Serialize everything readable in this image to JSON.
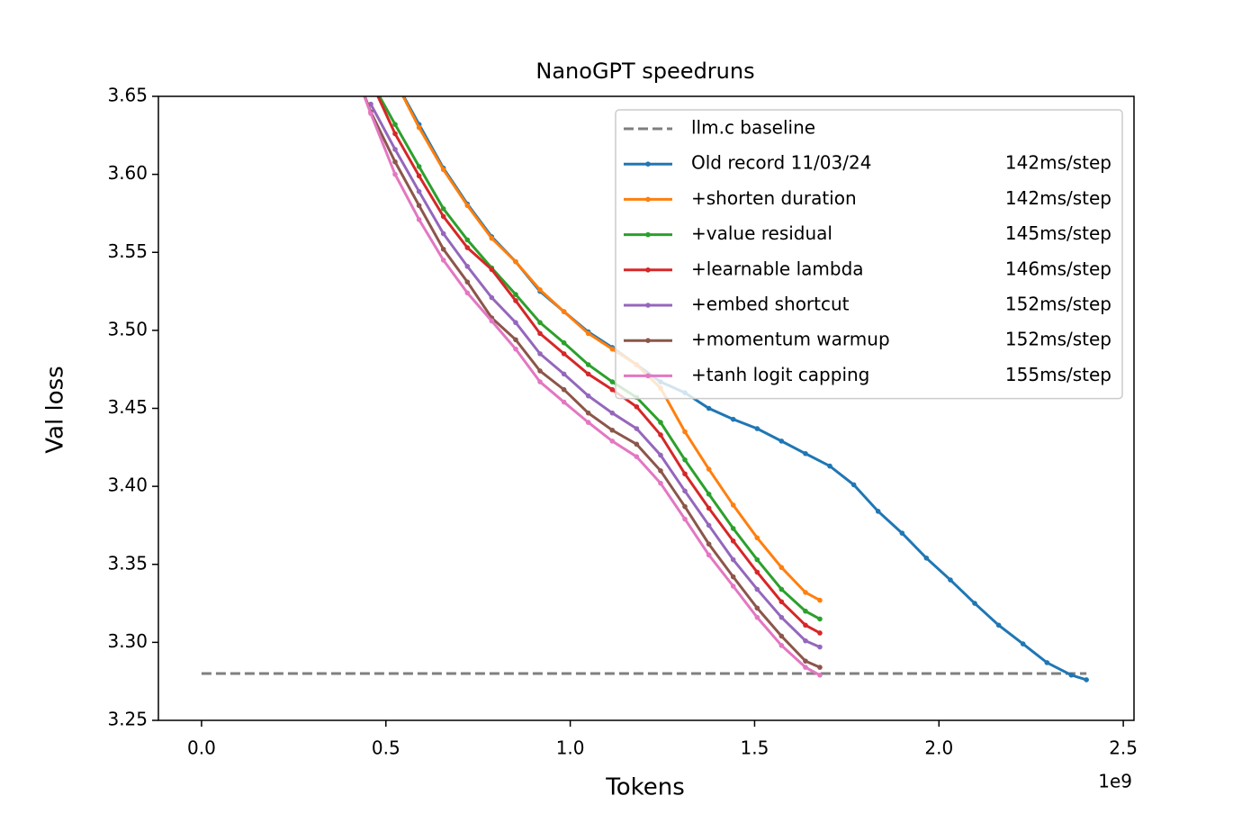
{
  "chart_data": {
    "type": "line",
    "title": "NanoGPT speedruns",
    "x_label": "Tokens",
    "y_label": "Val loss",
    "x_offset_label": "1e9",
    "xlim": [
      -0.117,
      2.529
    ],
    "ylim": [
      3.25,
      3.65
    ],
    "xticks": [
      {
        "value": 0,
        "label": "0.0"
      },
      0.5,
      {
        "value": 1,
        "label": "1.0"
      },
      1.5,
      {
        "value": 2,
        "label": "2.0"
      },
      2.5
    ],
    "yticks": [
      3.25,
      {
        "value": 3.3,
        "label": "3.30"
      },
      3.35,
      {
        "value": 3.4,
        "label": "3.40"
      },
      3.45,
      {
        "value": 3.5,
        "label": "3.50"
      },
      3.55,
      {
        "value": 3.6,
        "label": "3.60"
      },
      3.65
    ],
    "grid": false,
    "legend": "upper right",
    "series": [
      {
        "name": "llm.c baseline",
        "color": "#7f7f7f",
        "linestyle": "dashed",
        "x": [
          0,
          2.4
        ],
        "values": [
          3.28,
          3.28
        ]
      },
      {
        "name": "Old record 11/03/24",
        "step_time": "142ms/step",
        "color": "#1f77b4",
        "x": [
          0.525,
          0.59,
          0.656,
          0.721,
          0.787,
          0.852,
          0.918,
          0.983,
          1.049,
          1.114,
          1.18,
          1.245,
          1.311,
          1.376,
          1.442,
          1.507,
          1.573,
          1.638,
          1.704,
          1.769,
          1.835,
          1.9,
          1.966,
          2.031,
          2.097,
          2.162,
          2.228,
          2.293,
          2.359,
          2.4
        ],
        "values": [
          3.66,
          3.632,
          3.604,
          3.581,
          3.56,
          3.544,
          3.525,
          3.512,
          3.499,
          3.489,
          3.478,
          3.467,
          3.46,
          3.45,
          3.443,
          3.437,
          3.429,
          3.421,
          3.413,
          3.401,
          3.384,
          3.37,
          3.354,
          3.34,
          3.325,
          3.311,
          3.299,
          3.287,
          3.279,
          3.276
        ]
      },
      {
        "name": "+shorten duration",
        "step_time": "142ms/step",
        "color": "#ff7f0e",
        "x": [
          0.525,
          0.59,
          0.656,
          0.721,
          0.787,
          0.852,
          0.918,
          0.983,
          1.049,
          1.114,
          1.18,
          1.245,
          1.311,
          1.376,
          1.442,
          1.507,
          1.573,
          1.638,
          1.677
        ],
        "values": [
          3.66,
          3.63,
          3.603,
          3.58,
          3.559,
          3.544,
          3.526,
          3.512,
          3.498,
          3.488,
          3.478,
          3.463,
          3.435,
          3.411,
          3.388,
          3.367,
          3.348,
          3.332,
          3.327
        ]
      },
      {
        "name": "+value residual",
        "step_time": "145ms/step",
        "color": "#2ca02c",
        "x": [
          0.459,
          0.525,
          0.59,
          0.656,
          0.721,
          0.787,
          0.852,
          0.918,
          0.983,
          1.049,
          1.114,
          1.18,
          1.245,
          1.311,
          1.376,
          1.442,
          1.507,
          1.573,
          1.638,
          1.677
        ],
        "values": [
          3.66,
          3.632,
          3.605,
          3.578,
          3.558,
          3.54,
          3.523,
          3.505,
          3.492,
          3.478,
          3.467,
          3.457,
          3.441,
          3.417,
          3.395,
          3.373,
          3.353,
          3.334,
          3.32,
          3.315
        ]
      },
      {
        "name": "+learnable lambda",
        "step_time": "146ms/step",
        "color": "#d62728",
        "x": [
          0.459,
          0.525,
          0.59,
          0.656,
          0.721,
          0.787,
          0.852,
          0.918,
          0.983,
          1.049,
          1.114,
          1.18,
          1.245,
          1.311,
          1.376,
          1.442,
          1.507,
          1.573,
          1.638,
          1.677
        ],
        "values": [
          3.66,
          3.626,
          3.599,
          3.573,
          3.553,
          3.539,
          3.519,
          3.498,
          3.485,
          3.472,
          3.462,
          3.451,
          3.433,
          3.408,
          3.386,
          3.365,
          3.345,
          3.326,
          3.311,
          3.306
        ]
      },
      {
        "name": "+embed shortcut",
        "step_time": "152ms/step",
        "color": "#9467bd",
        "x": [
          0.459,
          0.525,
          0.59,
          0.656,
          0.721,
          0.787,
          0.852,
          0.918,
          0.983,
          1.049,
          1.114,
          1.18,
          1.245,
          1.311,
          1.376,
          1.442,
          1.507,
          1.573,
          1.638,
          1.677
        ],
        "values": [
          3.645,
          3.616,
          3.589,
          3.562,
          3.541,
          3.521,
          3.505,
          3.485,
          3.472,
          3.458,
          3.447,
          3.437,
          3.42,
          3.397,
          3.375,
          3.353,
          3.334,
          3.316,
          3.301,
          3.297
        ]
      },
      {
        "name": "+momentum warmup",
        "step_time": "152ms/step",
        "color": "#8c564b",
        "x": [
          0.394,
          0.459,
          0.525,
          0.59,
          0.656,
          0.721,
          0.787,
          0.852,
          0.918,
          0.983,
          1.049,
          1.114,
          1.18,
          1.245,
          1.311,
          1.376,
          1.442,
          1.507,
          1.573,
          1.638,
          1.677
        ],
        "values": [
          3.68,
          3.64,
          3.608,
          3.58,
          3.552,
          3.531,
          3.508,
          3.494,
          3.474,
          3.462,
          3.447,
          3.436,
          3.427,
          3.41,
          3.387,
          3.363,
          3.342,
          3.322,
          3.304,
          3.288,
          3.284
        ]
      },
      {
        "name": "+tanh logit capping",
        "step_time": "155ms/step",
        "color": "#e377c2",
        "x": [
          0.394,
          0.459,
          0.525,
          0.59,
          0.656,
          0.721,
          0.787,
          0.852,
          0.918,
          0.983,
          1.049,
          1.114,
          1.18,
          1.245,
          1.311,
          1.376,
          1.442,
          1.507,
          1.573,
          1.638,
          1.677
        ],
        "values": [
          3.68,
          3.639,
          3.6,
          3.571,
          3.545,
          3.524,
          3.506,
          3.488,
          3.467,
          3.454,
          3.441,
          3.429,
          3.419,
          3.402,
          3.379,
          3.356,
          3.336,
          3.316,
          3.298,
          3.284,
          3.279
        ]
      }
    ]
  }
}
